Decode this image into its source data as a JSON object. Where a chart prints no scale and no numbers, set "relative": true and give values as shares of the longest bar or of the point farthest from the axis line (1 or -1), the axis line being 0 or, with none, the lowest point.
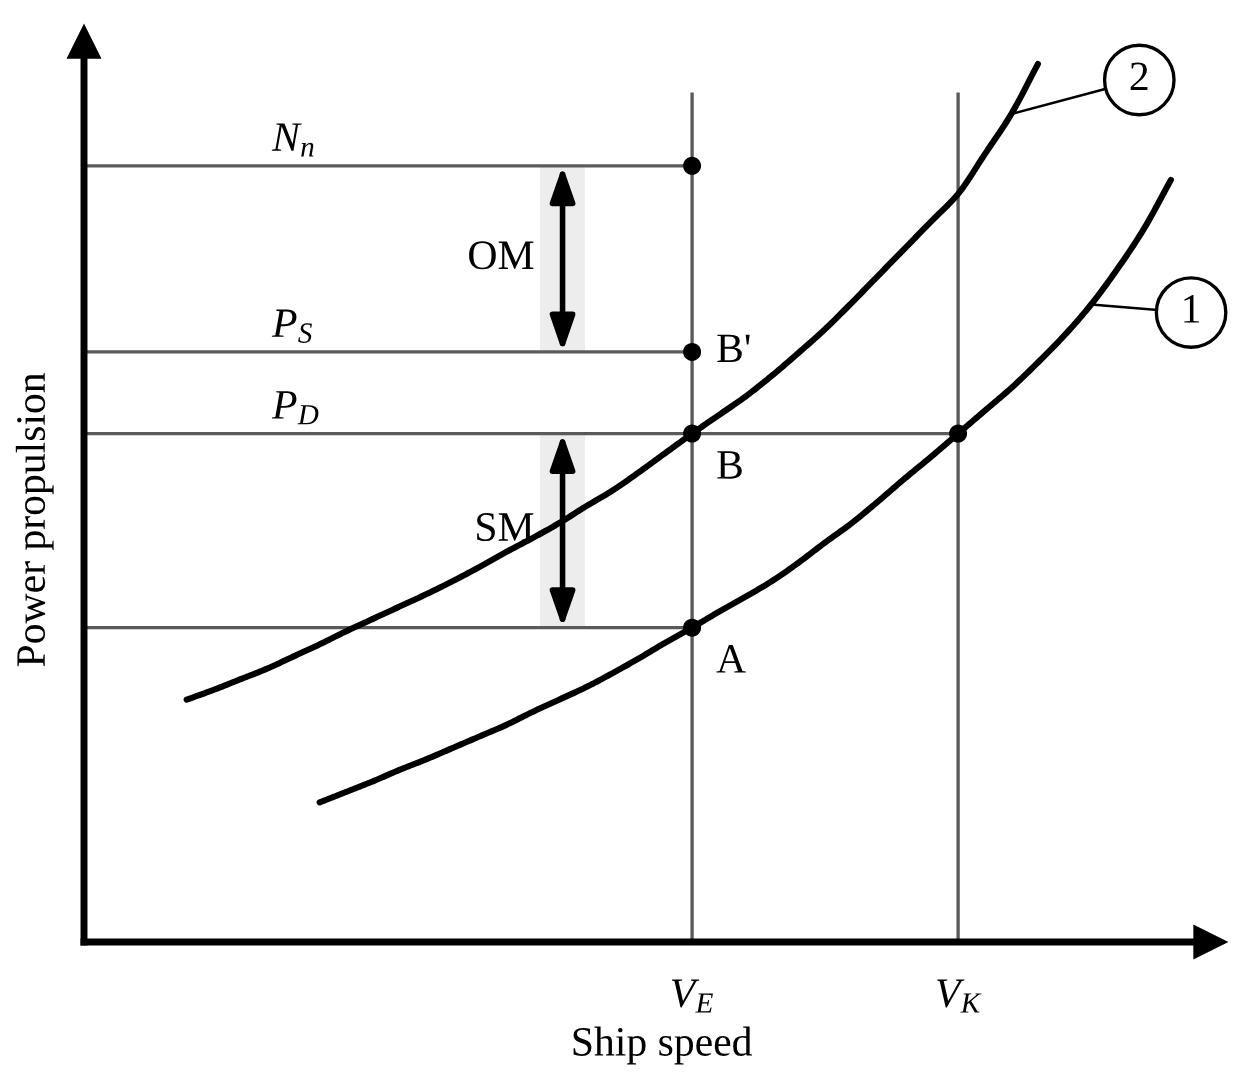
{
  "chart_data": {
    "type": "line",
    "relative": true,
    "xlabel": "Ship speed",
    "ylabel": "Power propulsion",
    "tick_labels": "x",
    "legend": "top right",
    "categories": [
      null,
      null,
      null,
      null,
      null,
      null,
      null,
      null,
      null,
      null,
      null,
      null,
      null,
      null,
      null,
      null,
      null,
      null,
      null,
      null,
      null,
      null,
      "V$_{E}$",
      null,
      null,
      null,
      null,
      null,
      null,
      null,
      null,
      null,
      "V$_{K}$",
      null,
      null,
      null,
      null,
      null,
      null,
      null,
      null,
      null
    ],
    "series": [
      {
        "name": "1",
        "color": "#000000",
        "values": [
          null,
          null,
          null,
          null,
          null,
          null,
          null,
          null,
          0.159,
          0.171,
          0.183,
          0.196,
          0.208,
          0.221,
          0.234,
          0.247,
          0.262,
          0.276,
          0.29,
          0.306,
          0.323,
          0.341,
          0.358,
          0.376,
          0.393,
          0.411,
          0.432,
          0.455,
          0.477,
          0.502,
          0.528,
          0.553,
          0.579,
          0.605,
          0.631,
          0.66,
          0.691,
          0.726,
          0.767,
          0.813,
          0.868,
          null
        ]
      },
      {
        "name": "2",
        "color": "#000000",
        "values": [
          null,
          null,
          null,
          0.276,
          0.287,
          0.299,
          0.311,
          0.325,
          0.339,
          0.354,
          0.368,
          0.382,
          0.396,
          0.411,
          0.427,
          0.444,
          0.46,
          0.477,
          0.496,
          0.514,
          0.535,
          0.557,
          0.579,
          0.6,
          0.621,
          0.645,
          0.671,
          0.698,
          0.728,
          0.759,
          0.79,
          0.821,
          0.852,
          0.897,
          0.943,
          1.0,
          null,
          null,
          null,
          null,
          null,
          null
        ]
      },
      {
        "type": "scatter",
        "color": "#000000",
        "marker": "circle",
        "x": [
          "V$_{E}$",
          "V$_{E}$",
          "V$_{E}$",
          "V$_{E}$",
          "V$_{K}$"
        ],
        "values": [
          0.884,
          0.672,
          0.579,
          0.358,
          0.579
        ]
      }
    ],
    "ref_lines": [
      {
        "axis": "x",
        "value": "V$_{E}$",
        "color": "#5a5a5a"
      },
      {
        "axis": "x",
        "value": "V$_{K}$",
        "color": "#5a5a5a"
      },
      {
        "axis": "y",
        "value": 0.884,
        "label": "N$_{n}$",
        "color": "#5a5a5a"
      },
      {
        "axis": "y",
        "value": 0.672,
        "label": "P$_{S}$",
        "color": "#5a5a5a"
      },
      {
        "axis": "y",
        "value": 0.579,
        "label": "P$_{D}$",
        "color": "#5a5a5a"
      },
      {
        "axis": "y",
        "value": 0.358,
        "color": "#5a5a5a"
      }
    ],
    "bands": [
      {
        "axis": "y",
        "from": 0.672,
        "to": 0.884,
        "label": "OM",
        "color": "#000000"
      },
      {
        "axis": "y",
        "from": 0.358,
        "to": 0.579,
        "label": "SM",
        "color": "#000000"
      }
    ],
    "annotations": [
      {
        "text": "A",
        "x": "V$_{E}$",
        "y": 0.358
      },
      {
        "text": "B",
        "x": "V$_{E}$",
        "y": 0.579
      },
      {
        "text": "B'",
        "x": "V$_{E}$",
        "y": 0.672
      }
    ]
  }
}
